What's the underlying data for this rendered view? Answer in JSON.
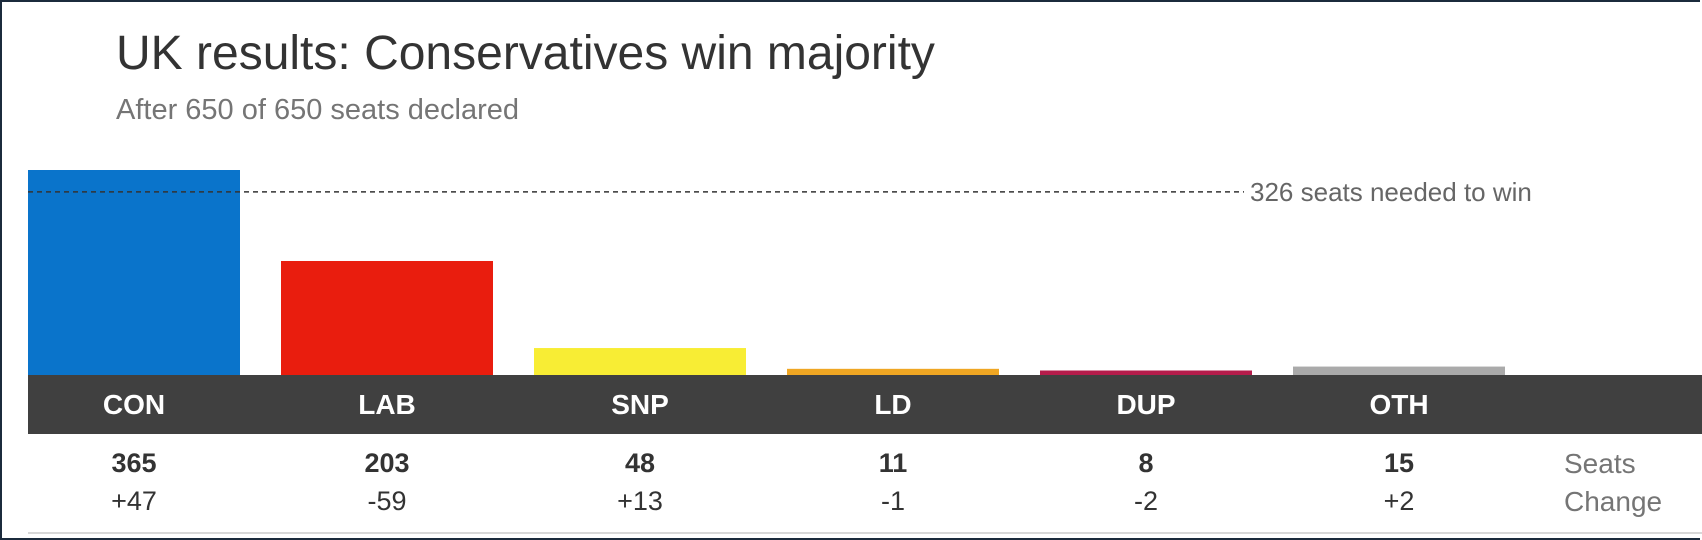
{
  "title": "UK results: Conservatives win majority",
  "subtitle": "After 650 of 650 seats declared",
  "row_labels": {
    "seats": "Seats",
    "change": "Change"
  },
  "chart_data": {
    "type": "bar",
    "title": "UK results: Conservatives win majority",
    "subtitle": "After 650 of 650 seats declared",
    "categories": [
      "CON",
      "LAB",
      "SNP",
      "LD",
      "DUP",
      "OTH"
    ],
    "values": [
      365,
      203,
      48,
      11,
      8,
      15
    ],
    "change": [
      "+47",
      "-59",
      "+13",
      "-1",
      "-2",
      "+2"
    ],
    "colors": [
      "#0a74cb",
      "#e91d0e",
      "#f8ed34",
      "#efa623",
      "#b51c4b",
      "#aaaaaa"
    ],
    "ylim": [
      0,
      365
    ],
    "grid": false,
    "reference_line": {
      "value": 326,
      "label": "326 seats needed to win"
    }
  }
}
